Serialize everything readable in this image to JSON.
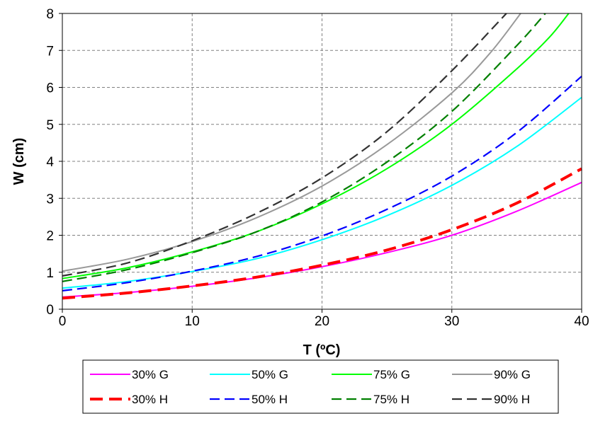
{
  "chart_data": {
    "type": "line",
    "xlabel": "T (ºC)",
    "ylabel": "W (cm)",
    "xlim": [
      0,
      40
    ],
    "ylim": [
      0,
      8
    ],
    "x_ticks": [
      0,
      10,
      20,
      30,
      40
    ],
    "y_ticks": [
      0,
      1,
      2,
      3,
      4,
      5,
      6,
      7,
      8
    ],
    "x_tick_labels": [
      "0",
      "10",
      "20",
      "30",
      "40"
    ],
    "y_tick_labels": [
      "0",
      "1",
      "2",
      "3",
      "4",
      "5",
      "6",
      "7",
      "8"
    ],
    "grid": true,
    "legend_position": "bottom",
    "series": [
      {
        "name": "30% G",
        "color": "#ff00ff",
        "style": "solid",
        "x": [
          0,
          5,
          10,
          15,
          20,
          25,
          30,
          35,
          40
        ],
        "y": [
          0.33,
          0.45,
          0.62,
          0.85,
          1.15,
          1.53,
          2.0,
          2.65,
          3.43
        ]
      },
      {
        "name": "50% G",
        "color": "#00ffff",
        "style": "solid",
        "x": [
          0,
          5,
          10,
          15,
          20,
          25,
          30,
          35,
          40
        ],
        "y": [
          0.57,
          0.75,
          1.02,
          1.37,
          1.88,
          2.53,
          3.35,
          4.4,
          5.73
        ]
      },
      {
        "name": "75% G",
        "color": "#00ff00",
        "style": "solid",
        "x": [
          0,
          5,
          10,
          15,
          20,
          25,
          30,
          35,
          37.5,
          39
        ],
        "y": [
          0.83,
          1.12,
          1.55,
          2.1,
          2.85,
          3.8,
          5.0,
          6.5,
          7.35,
          8.0
        ]
      },
      {
        "name": "90% G",
        "color": "#999999",
        "style": "solid",
        "x": [
          0,
          5,
          10,
          15,
          20,
          25,
          30,
          33,
          35.3
        ],
        "y": [
          1.03,
          1.35,
          1.83,
          2.48,
          3.33,
          4.45,
          5.85,
          6.95,
          8.0
        ]
      },
      {
        "name": "30% H",
        "color": "#ff0000",
        "style": "dashed-thick",
        "x": [
          0,
          5,
          10,
          15,
          20,
          25,
          30,
          35,
          40
        ],
        "y": [
          0.3,
          0.44,
          0.63,
          0.87,
          1.19,
          1.6,
          2.15,
          2.87,
          3.8
        ]
      },
      {
        "name": "50% H",
        "color": "#0000ff",
        "style": "dashed",
        "x": [
          0,
          5,
          10,
          15,
          20,
          25,
          30,
          35,
          40
        ],
        "y": [
          0.5,
          0.72,
          1.03,
          1.43,
          1.98,
          2.7,
          3.6,
          4.78,
          6.3
        ]
      },
      {
        "name": "75% H",
        "color": "#008000",
        "style": "dashed",
        "x": [
          0,
          5,
          10,
          15,
          20,
          25,
          30,
          35,
          37.2
        ],
        "y": [
          0.75,
          1.07,
          1.53,
          2.1,
          2.9,
          3.98,
          5.35,
          7.13,
          8.0
        ]
      },
      {
        "name": "90% H",
        "color": "#333333",
        "style": "dashed",
        "x": [
          0,
          5,
          10,
          15,
          20,
          25,
          30,
          34.2
        ],
        "y": [
          0.9,
          1.25,
          1.85,
          2.6,
          3.55,
          4.8,
          6.45,
          8.0
        ]
      }
    ]
  }
}
